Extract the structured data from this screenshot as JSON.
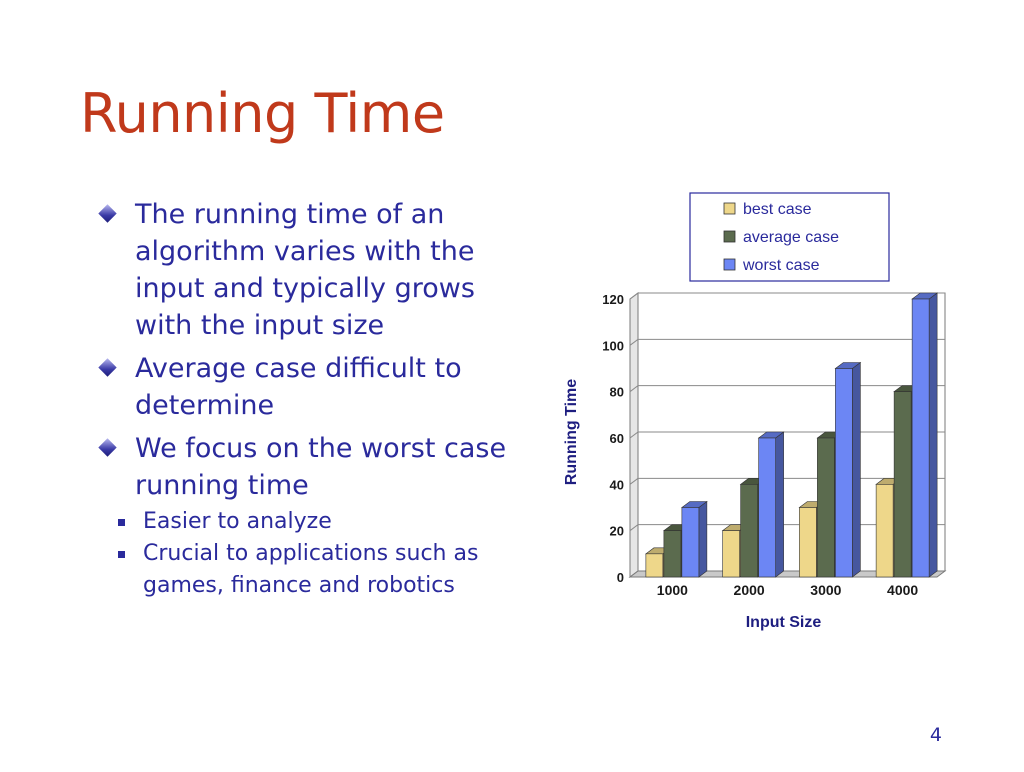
{
  "slide": {
    "title": "Running Time",
    "bullets": [
      {
        "text": "The running time of an algorithm varies with the input and typically grows with the input size"
      },
      {
        "text": "Average case difficult to determine"
      },
      {
        "text": "We focus on the worst case running time"
      }
    ],
    "sub_bullets": [
      {
        "text": "Easier to analyze"
      },
      {
        "text": "Crucial to applications such as games, finance and robotics"
      }
    ],
    "page_number": "4"
  },
  "colors": {
    "title": "#c0391b",
    "text": "#2a2a9c",
    "axis_label": "#1e1e80"
  },
  "chart_data": {
    "type": "bar",
    "categories": [
      "1000",
      "2000",
      "3000",
      "4000"
    ],
    "series": [
      {
        "name": "best case",
        "values": [
          10,
          20,
          30,
          40
        ],
        "color": "#eed78a"
      },
      {
        "name": "average case",
        "values": [
          20,
          40,
          60,
          80
        ],
        "color": "#5b6b4e"
      },
      {
        "name": "worst case",
        "values": [
          30,
          60,
          90,
          120
        ],
        "color": "#6c86f4"
      }
    ],
    "xlabel": "Input Size",
    "ylabel": "Running Time",
    "ylim": [
      0,
      120
    ],
    "yticks": [
      0,
      20,
      40,
      60,
      80,
      100,
      120
    ],
    "grid": true,
    "legend_position": "top",
    "style": "3d"
  }
}
